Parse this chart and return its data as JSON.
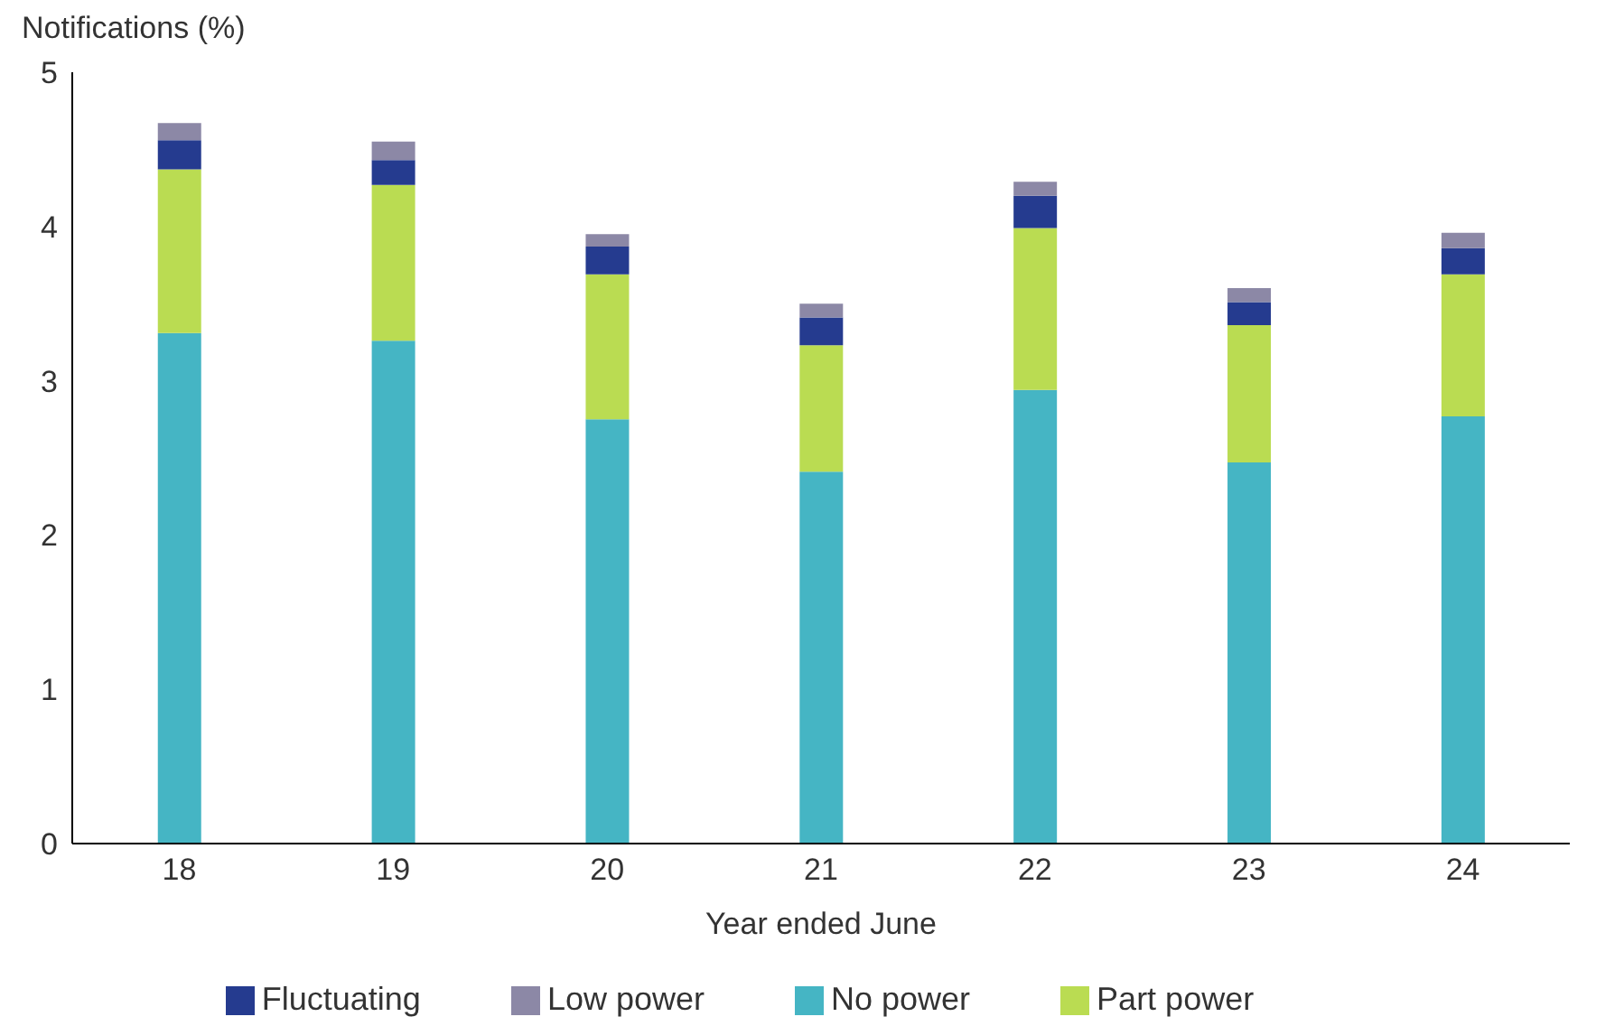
{
  "chart_data": {
    "type": "bar",
    "stacked": true,
    "ylabel": "Notifications (%)",
    "xlabel": "Year ended June",
    "categories": [
      "18",
      "19",
      "20",
      "21",
      "22",
      "23",
      "24"
    ],
    "series": [
      {
        "name": "No power",
        "color": "#45b5c4",
        "values": [
          3.31,
          3.26,
          2.75,
          2.41,
          2.94,
          2.47,
          2.77
        ]
      },
      {
        "name": "Part power",
        "color": "#badc52",
        "values": [
          1.06,
          1.01,
          0.94,
          0.82,
          1.05,
          0.89,
          0.92
        ]
      },
      {
        "name": "Fluctuating",
        "color": "#253b8f",
        "values": [
          0.19,
          0.16,
          0.18,
          0.18,
          0.21,
          0.15,
          0.17
        ]
      },
      {
        "name": "Low power",
        "color": "#8c88a6",
        "values": [
          0.11,
          0.12,
          0.08,
          0.09,
          0.09,
          0.09,
          0.1
        ]
      }
    ],
    "ylim": [
      0,
      5
    ],
    "yticks": [
      0,
      1,
      2,
      3,
      4,
      5
    ],
    "grid": false,
    "legend": "bottom"
  }
}
